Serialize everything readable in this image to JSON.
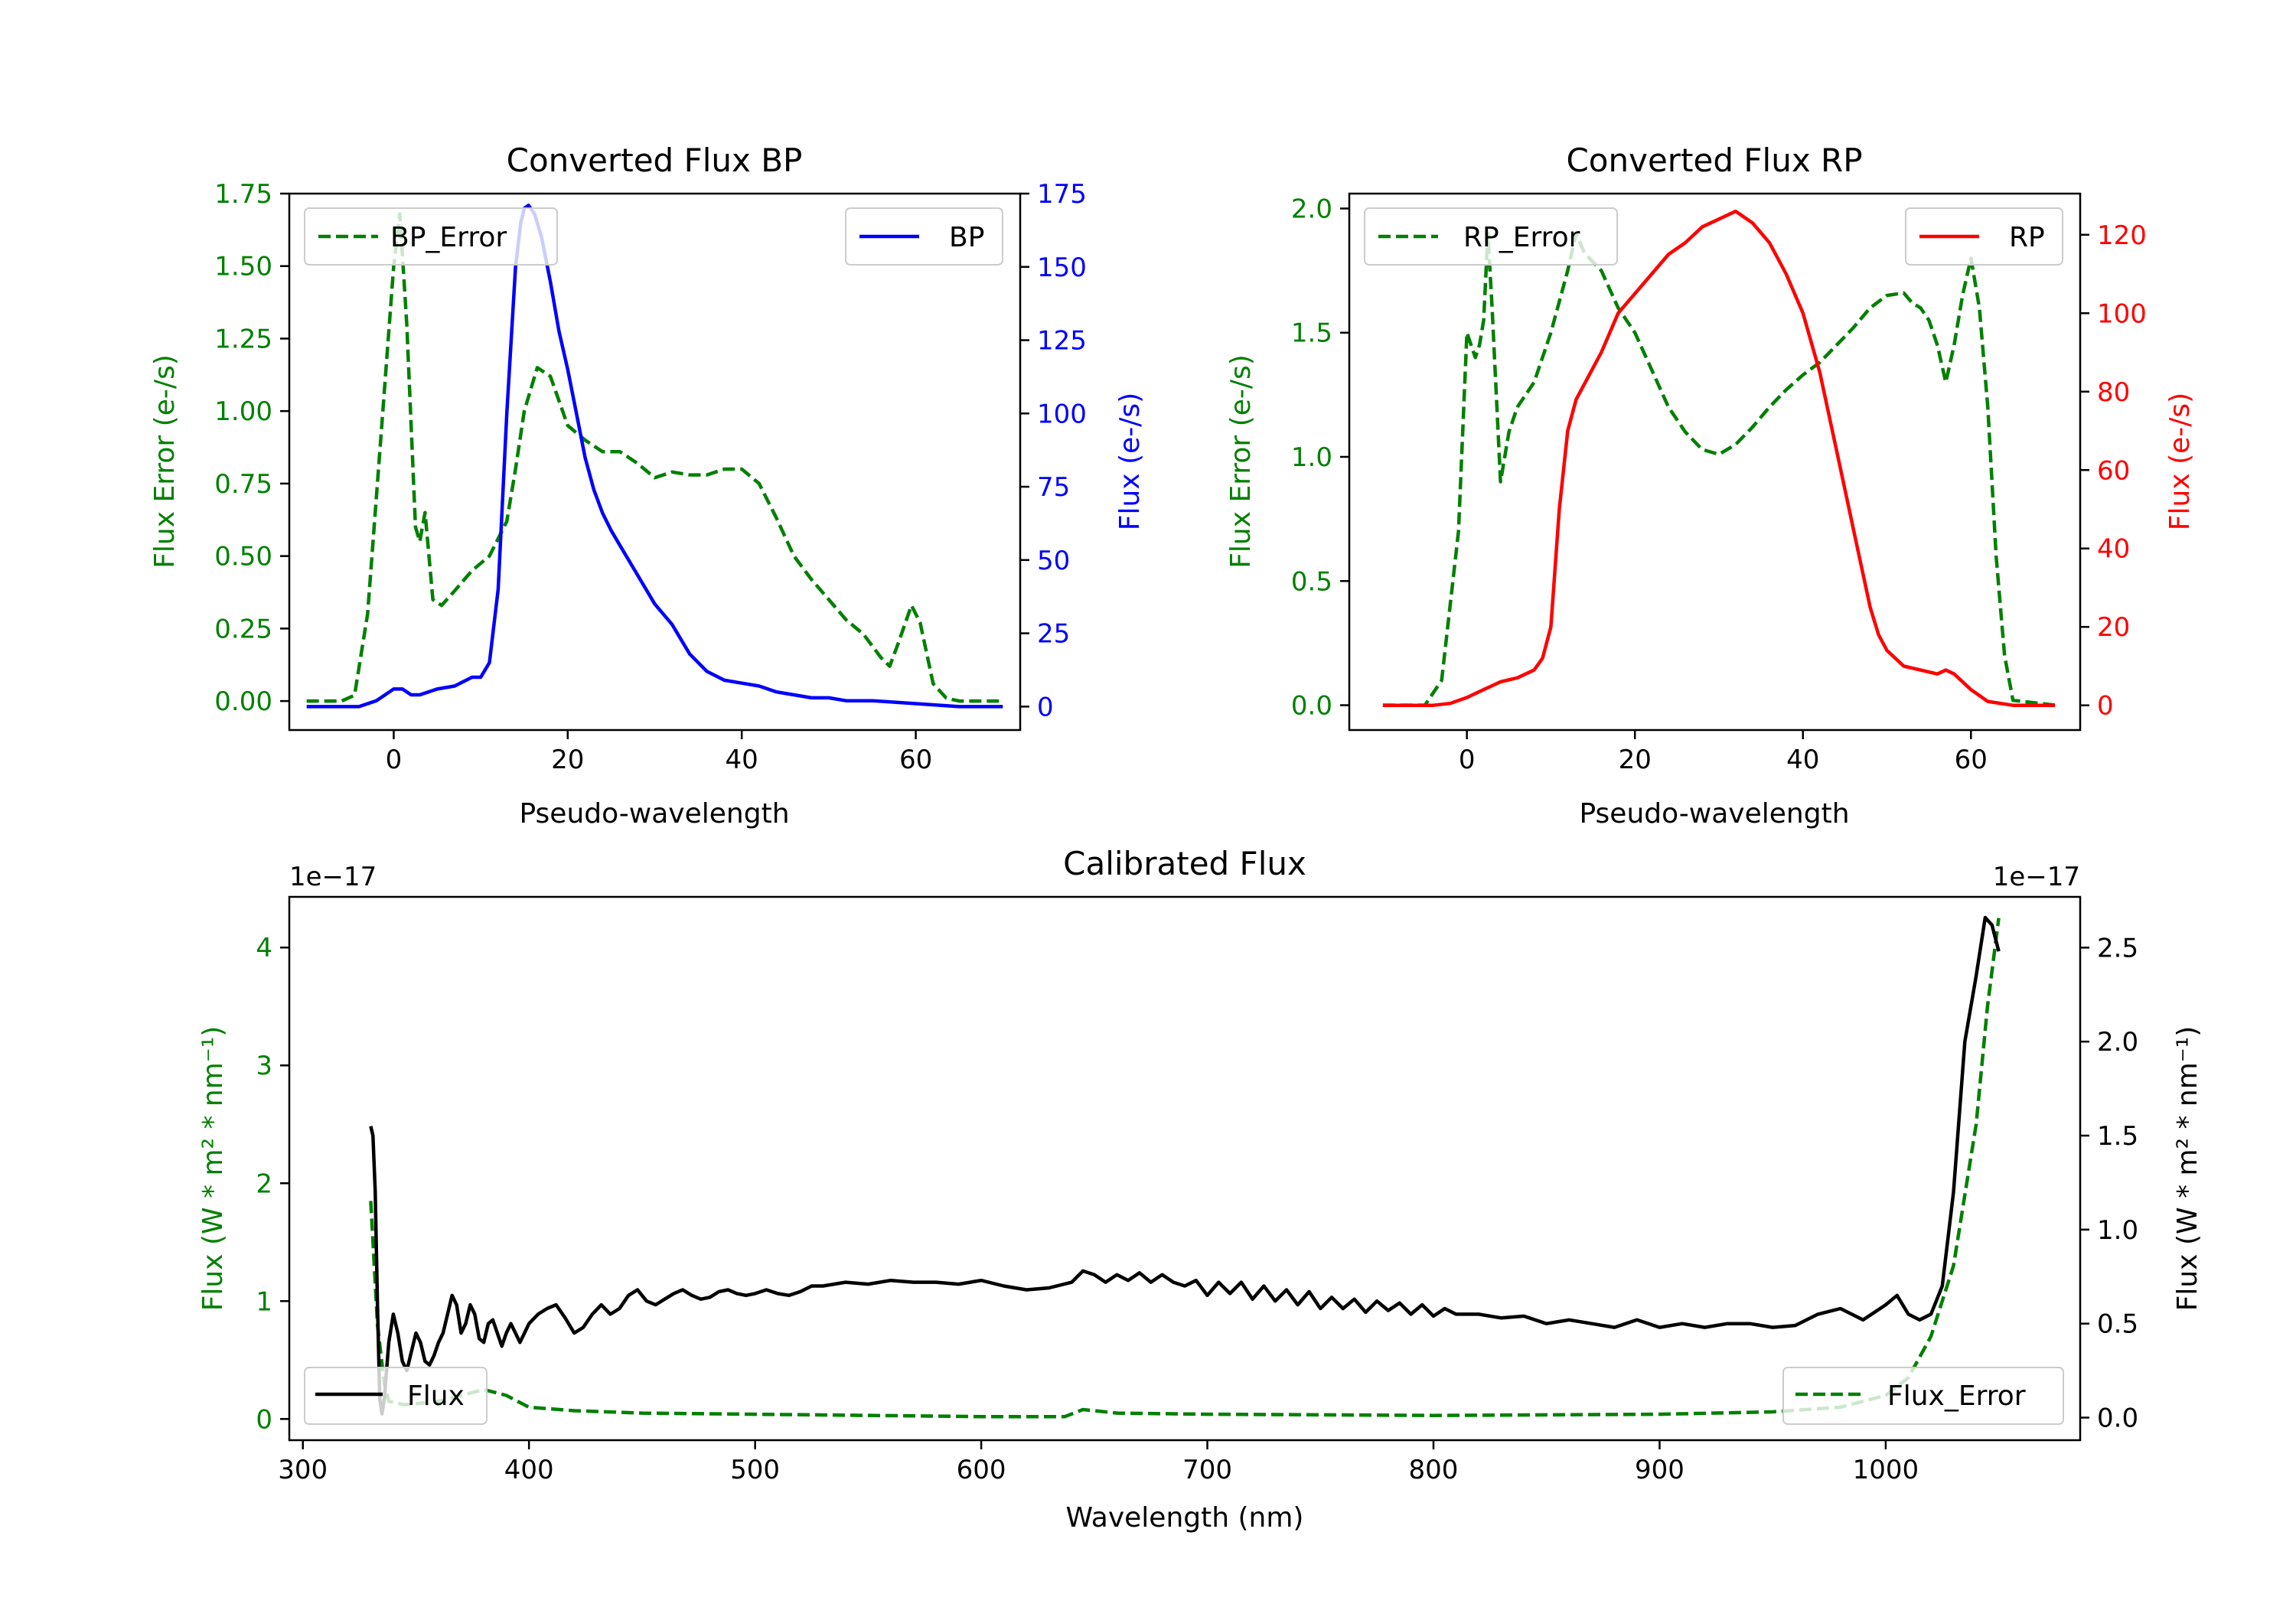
{
  "chart_data": [
    {
      "id": "bp",
      "type": "line",
      "title": "Converted Flux BP",
      "xlabel": "Pseudo-wavelength",
      "ylabel_left": "Flux Error (e-/s)",
      "ylabel_right": "Flux (e-/s)",
      "xlim": [
        -12,
        72
      ],
      "ylim_left": [
        -0.1,
        1.75
      ],
      "ylim_right": [
        -8,
        175
      ],
      "xticks": [
        0,
        20,
        40,
        60
      ],
      "yticks_left": [
        "0.00",
        "0.25",
        "0.50",
        "0.75",
        "1.00",
        "1.25",
        "1.50",
        "1.75"
      ],
      "yticks_right": [
        "0",
        "25",
        "50",
        "75",
        "100",
        "125",
        "150",
        "175"
      ],
      "left_color": "#008000",
      "right_color": "#0000ff",
      "series": [
        {
          "name": "BP_Error",
          "axis": "left",
          "color": "#008000",
          "dash": true,
          "legend": "upper left",
          "x": [
            -10,
            -6,
            -4.5,
            -3,
            -1.5,
            0,
            0.7,
            1.5,
            2.5,
            3,
            3.6,
            4.5,
            5.5,
            7,
            9,
            11,
            13,
            14,
            15,
            16.5,
            18,
            20,
            22,
            24,
            26,
            28,
            30,
            32,
            34,
            36,
            38,
            40,
            42,
            44,
            46,
            48,
            50,
            52,
            54,
            56,
            57,
            58,
            59.5,
            60.5,
            62,
            63.5,
            65,
            67,
            70
          ],
          "values": [
            0,
            0,
            0.02,
            0.3,
            0.9,
            1.5,
            1.68,
            1.3,
            0.6,
            0.55,
            0.65,
            0.35,
            0.33,
            0.38,
            0.45,
            0.5,
            0.62,
            0.8,
            1.0,
            1.15,
            1.12,
            0.95,
            0.9,
            0.86,
            0.86,
            0.82,
            0.77,
            0.79,
            0.78,
            0.78,
            0.8,
            0.8,
            0.75,
            0.63,
            0.5,
            0.42,
            0.35,
            0.28,
            0.23,
            0.15,
            0.12,
            0.2,
            0.33,
            0.27,
            0.06,
            0.01,
            0,
            0,
            0
          ]
        },
        {
          "name": "BP",
          "axis": "right",
          "color": "#0000ff",
          "dash": false,
          "legend": "upper right",
          "x": [
            -10,
            -4,
            -2,
            0,
            1,
            2,
            3,
            5,
            7,
            9,
            10,
            11,
            12,
            13,
            14,
            14.6,
            15,
            15.5,
            16.2,
            17,
            18,
            19,
            20,
            21,
            22,
            23,
            24,
            25,
            26,
            28,
            30,
            32,
            34,
            36,
            38,
            40,
            42,
            44,
            46,
            48,
            50,
            52,
            55,
            60,
            65,
            70
          ],
          "values": [
            0,
            0,
            2,
            6,
            6,
            4,
            4,
            6,
            7,
            10,
            10,
            15,
            40,
            100,
            150,
            165,
            170,
            171,
            168,
            160,
            145,
            128,
            115,
            100,
            85,
            74,
            66,
            60,
            55,
            45,
            35,
            28,
            18,
            12,
            9,
            8,
            7,
            5,
            4,
            3,
            3,
            2,
            2,
            1,
            0,
            0
          ]
        }
      ]
    },
    {
      "id": "rp",
      "type": "line",
      "title": "Converted Flux RP",
      "xlabel": "Pseudo-wavelength",
      "ylabel_left": "Flux Error (e-/s)",
      "ylabel_right": "Flux (e-/s)",
      "xlim": [
        -14,
        73
      ],
      "ylim_left": [
        -0.1,
        2.06
      ],
      "ylim_right": [
        -6.3,
        130.5
      ],
      "xticks": [
        0,
        20,
        40,
        60
      ],
      "yticks_left": [
        "0.0",
        "0.5",
        "1.0",
        "1.5",
        "2.0"
      ],
      "yticks_right": [
        "0",
        "20",
        "40",
        "60",
        "80",
        "100",
        "120"
      ],
      "left_color": "#008000",
      "right_color": "#ff0000",
      "series": [
        {
          "name": "RP_Error",
          "axis": "left",
          "color": "#008000",
          "dash": true,
          "legend": "upper left",
          "x": [
            -10,
            -5,
            -3,
            -1,
            0,
            0.5,
            1,
            1.5,
            2,
            2.5,
            3,
            4,
            5,
            6,
            8,
            10,
            12,
            13,
            14,
            16,
            18,
            20,
            22,
            24,
            26,
            28,
            30,
            32,
            34,
            36,
            38,
            40,
            42,
            44,
            46,
            48,
            50,
            52,
            53,
            54,
            55,
            56,
            57,
            58,
            59,
            60,
            61,
            62,
            63,
            64,
            65,
            70
          ],
          "values": [
            0,
            0,
            0.1,
            0.7,
            1.5,
            1.45,
            1.4,
            1.45,
            1.55,
            1.9,
            1.6,
            0.9,
            1.1,
            1.2,
            1.3,
            1.5,
            1.75,
            1.9,
            1.82,
            1.75,
            1.6,
            1.5,
            1.35,
            1.2,
            1.1,
            1.03,
            1.01,
            1.05,
            1.12,
            1.2,
            1.27,
            1.33,
            1.38,
            1.45,
            1.52,
            1.6,
            1.65,
            1.66,
            1.62,
            1.6,
            1.55,
            1.45,
            1.3,
            1.45,
            1.65,
            1.8,
            1.6,
            1.2,
            0.6,
            0.2,
            0.02,
            0
          ]
        },
        {
          "name": "RP",
          "axis": "right",
          "color": "#ff0000",
          "dash": false,
          "legend": "upper right",
          "x": [
            -10,
            -4,
            -2,
            0,
            2,
            4,
            6,
            8,
            9,
            10,
            11,
            12,
            13,
            14,
            16,
            18,
            20,
            22,
            24,
            26,
            28,
            30,
            32,
            34,
            36,
            38,
            40,
            42,
            44,
            46,
            48,
            49,
            50,
            51,
            52,
            54,
            56,
            57,
            58,
            60,
            62,
            65,
            70
          ],
          "values": [
            0,
            0,
            0.5,
            2,
            4,
            6,
            7,
            9,
            12,
            20,
            50,
            70,
            78,
            82,
            90,
            100,
            105,
            110,
            115,
            118,
            122,
            124,
            126,
            123,
            118,
            110,
            100,
            85,
            65,
            45,
            25,
            18,
            14,
            12,
            10,
            9,
            8,
            9,
            8,
            4,
            1,
            0,
            0
          ]
        }
      ]
    },
    {
      "id": "cal",
      "type": "line",
      "title": "Calibrated Flux",
      "xlabel": "Wavelength (nm)",
      "ylabel_left": "Flux (W * m² * nm⁻¹)",
      "ylabel_right": "Flux (W * m² * nm⁻¹)",
      "offset_left": "1e−17",
      "offset_right": "1e−17",
      "xlim": [
        294,
        1086
      ],
      "ylim_left": [
        -0.18,
        4.43
      ],
      "ylim_right": [
        -0.12,
        2.77
      ],
      "xticks": [
        300,
        400,
        500,
        600,
        700,
        800,
        900,
        1000
      ],
      "yticks_left": [
        "0",
        "1",
        "2",
        "3",
        "4"
      ],
      "yticks_right": [
        "0.0",
        "0.5",
        "1.0",
        "1.5",
        "2.0",
        "2.5"
      ],
      "left_color": "#008000",
      "right_color": "#000000",
      "series": [
        {
          "name": "Flux_Error",
          "axis": "left",
          "color": "#008000",
          "dash": true,
          "legend": "lower right",
          "x": [
            330,
            333,
            336,
            338,
            345,
            360,
            370,
            380,
            390,
            400,
            420,
            450,
            500,
            600,
            637,
            645,
            660,
            700,
            800,
            900,
            950,
            980,
            1000,
            1010,
            1020,
            1030,
            1040,
            1045,
            1050
          ],
          "values": [
            1.85,
            0.8,
            0.3,
            0.15,
            0.12,
            0.15,
            0.2,
            0.25,
            0.2,
            0.1,
            0.07,
            0.05,
            0.04,
            0.02,
            0.02,
            0.08,
            0.05,
            0.04,
            0.03,
            0.04,
            0.06,
            0.1,
            0.2,
            0.35,
            0.7,
            1.3,
            2.5,
            3.5,
            4.25
          ]
        },
        {
          "name": "Flux",
          "axis": "right",
          "color": "#000000",
          "dash": false,
          "legend": "lower left",
          "x": [
            330,
            331,
            332,
            333,
            334,
            335,
            336,
            338,
            340,
            342,
            344,
            346,
            348,
            350,
            352,
            354,
            356,
            358,
            360,
            362,
            364,
            366,
            368,
            370,
            372,
            374,
            376,
            378,
            380,
            382,
            384,
            386,
            388,
            390,
            392,
            394,
            396,
            398,
            400,
            404,
            408,
            412,
            416,
            420,
            424,
            428,
            432,
            436,
            440,
            444,
            448,
            452,
            456,
            460,
            464,
            468,
            472,
            476,
            480,
            484,
            488,
            492,
            496,
            500,
            505,
            510,
            515,
            520,
            525,
            530,
            540,
            550,
            560,
            570,
            580,
            590,
            600,
            610,
            620,
            630,
            640,
            645,
            650,
            655,
            660,
            665,
            670,
            675,
            680,
            685,
            690,
            695,
            700,
            705,
            710,
            715,
            720,
            725,
            730,
            735,
            740,
            745,
            750,
            755,
            760,
            765,
            770,
            775,
            780,
            785,
            790,
            795,
            800,
            805,
            810,
            820,
            830,
            840,
            850,
            860,
            870,
            880,
            890,
            900,
            910,
            920,
            930,
            940,
            950,
            960,
            970,
            980,
            990,
            1000,
            1005,
            1010,
            1015,
            1020,
            1025,
            1030,
            1035,
            1040,
            1044,
            1047,
            1050
          ],
          "values": [
            1.55,
            1.5,
            1.2,
            0.6,
            0.1,
            0.02,
            0.1,
            0.4,
            0.55,
            0.45,
            0.3,
            0.25,
            0.35,
            0.45,
            0.4,
            0.3,
            0.28,
            0.33,
            0.4,
            0.45,
            0.55,
            0.65,
            0.6,
            0.45,
            0.5,
            0.6,
            0.55,
            0.42,
            0.4,
            0.5,
            0.52,
            0.45,
            0.38,
            0.45,
            0.5,
            0.45,
            0.4,
            0.45,
            0.5,
            0.55,
            0.58,
            0.6,
            0.53,
            0.45,
            0.48,
            0.55,
            0.6,
            0.55,
            0.58,
            0.65,
            0.68,
            0.62,
            0.6,
            0.63,
            0.66,
            0.68,
            0.65,
            0.63,
            0.64,
            0.67,
            0.68,
            0.66,
            0.65,
            0.66,
            0.68,
            0.66,
            0.65,
            0.67,
            0.7,
            0.7,
            0.72,
            0.71,
            0.73,
            0.72,
            0.72,
            0.71,
            0.73,
            0.7,
            0.68,
            0.69,
            0.72,
            0.78,
            0.76,
            0.72,
            0.76,
            0.73,
            0.77,
            0.72,
            0.76,
            0.72,
            0.7,
            0.73,
            0.65,
            0.72,
            0.66,
            0.72,
            0.63,
            0.7,
            0.62,
            0.68,
            0.6,
            0.67,
            0.58,
            0.64,
            0.58,
            0.63,
            0.56,
            0.62,
            0.57,
            0.61,
            0.55,
            0.6,
            0.54,
            0.58,
            0.55,
            0.55,
            0.53,
            0.54,
            0.5,
            0.52,
            0.5,
            0.48,
            0.52,
            0.48,
            0.5,
            0.48,
            0.5,
            0.5,
            0.48,
            0.49,
            0.55,
            0.58,
            0.52,
            0.6,
            0.65,
            0.55,
            0.52,
            0.55,
            0.7,
            1.2,
            2.0,
            2.35,
            2.66,
            2.62,
            2.48
          ]
        }
      ]
    }
  ]
}
